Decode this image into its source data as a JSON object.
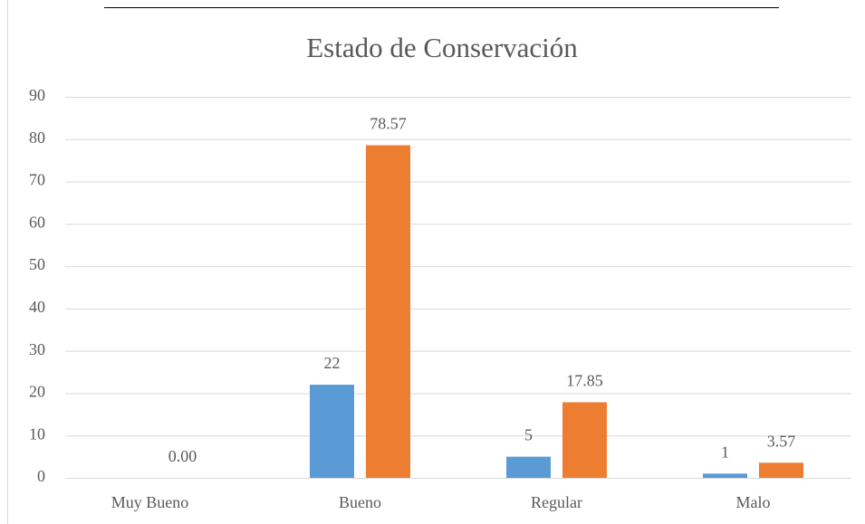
{
  "chart_data": {
    "type": "bar",
    "title": "Estado de Conservación",
    "categories": [
      "Muy Bueno",
      "Bueno",
      "Regular",
      "Malo"
    ],
    "series": [
      {
        "color": "#5b9bd5",
        "values": [
          null,
          22,
          5,
          1
        ]
      },
      {
        "color": "#ed7d31",
        "values": [
          0,
          78.57,
          17.85,
          3.57
        ],
        "value_labels": [
          "0.00",
          "78.57",
          "17.85",
          "3.57"
        ]
      }
    ],
    "ylim": [
      0,
      90
    ],
    "yticks": [
      0,
      10,
      20,
      30,
      40,
      50,
      60,
      70,
      80,
      90
    ],
    "grid": true
  }
}
